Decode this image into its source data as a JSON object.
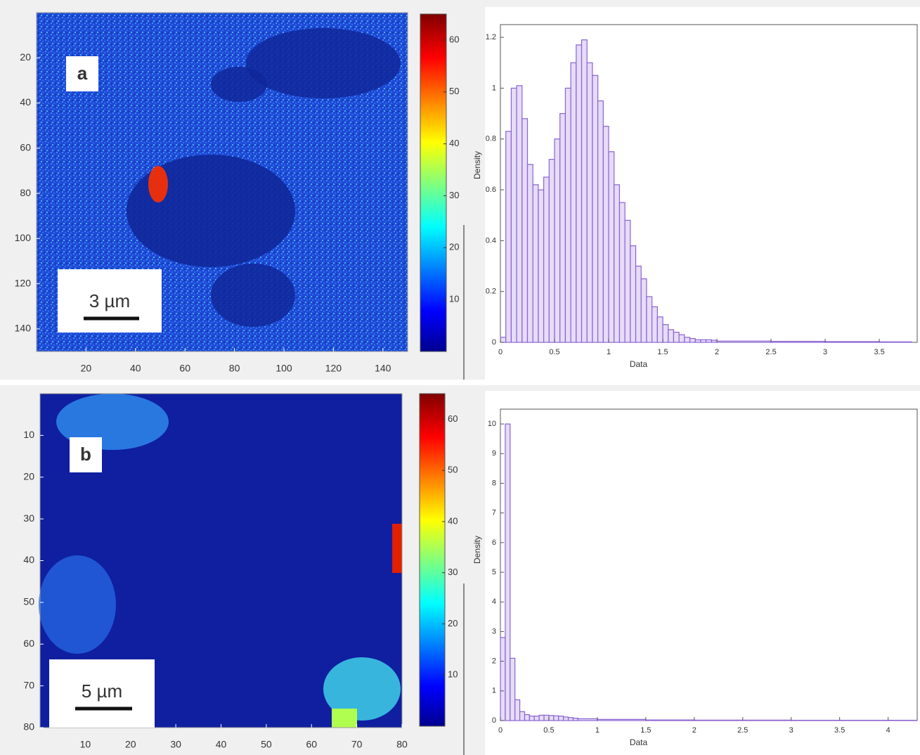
{
  "chart_data": [
    {
      "type": "heatmap",
      "label": "a",
      "scale_bar": "3 µm",
      "colormap": "jet",
      "xlim": [
        0,
        150
      ],
      "ylim": [
        0,
        150
      ],
      "xticks": [
        20,
        40,
        60,
        80,
        100,
        120,
        140
      ],
      "yticks": [
        20,
        40,
        60,
        80,
        100,
        120,
        140
      ],
      "colorbar": {
        "lim": [
          0,
          65
        ],
        "ticks": [
          10,
          20,
          30,
          40,
          50,
          60
        ]
      }
    },
    {
      "type": "histogram",
      "xlabel": "Data",
      "ylabel": "Density",
      "color": "#8a63d2",
      "bins": [
        0,
        0.05,
        0.1,
        0.15,
        0.2,
        0.25,
        0.3,
        0.35,
        0.4,
        0.45,
        0.5,
        0.55,
        0.6,
        0.65,
        0.7,
        0.75,
        0.8,
        0.85,
        0.9,
        0.95,
        1,
        1.05,
        1.1,
        1.15,
        1.2,
        1.25,
        1.3,
        1.35,
        1.4,
        1.45,
        1.5,
        1.55,
        1.6,
        1.65,
        1.7,
        1.75,
        1.8,
        1.85,
        1.9,
        1.95,
        2,
        2.5,
        3,
        3.5,
        3.8
      ],
      "values": [
        0.02,
        0.83,
        1.0,
        1.01,
        0.88,
        0.7,
        0.62,
        0.6,
        0.65,
        0.72,
        0.8,
        0.9,
        1.0,
        1.1,
        1.17,
        1.19,
        1.1,
        1.05,
        0.95,
        0.85,
        0.75,
        0.62,
        0.55,
        0.48,
        0.38,
        0.3,
        0.25,
        0.18,
        0.14,
        0.1,
        0.07,
        0.05,
        0.04,
        0.03,
        0.02,
        0.015,
        0.01,
        0.01,
        0.01,
        0.008,
        0.005,
        0.004,
        0.003,
        0.002
      ],
      "xlim": [
        0,
        3.85
      ],
      "ylim": [
        0,
        1.25
      ],
      "xticks": [
        0,
        0.5,
        1,
        1.5,
        2,
        2.5,
        3,
        3.5
      ],
      "yticks": [
        0,
        0.2,
        0.4,
        0.6,
        0.8,
        1,
        1.2
      ]
    },
    {
      "type": "heatmap",
      "label": "b",
      "scale_bar": "5 µm",
      "colormap": "jet",
      "xlim": [
        0,
        80
      ],
      "ylim": [
        0,
        80
      ],
      "xticks": [
        10,
        20,
        30,
        40,
        50,
        60,
        70,
        80
      ],
      "yticks": [
        10,
        20,
        30,
        40,
        50,
        60,
        70,
        80
      ],
      "colorbar": {
        "lim": [
          0,
          65
        ],
        "ticks": [
          10,
          20,
          30,
          40,
          50,
          60
        ]
      }
    },
    {
      "type": "histogram",
      "xlabel": "Data",
      "ylabel": "Density",
      "color": "#8a63d2",
      "bins": [
        0,
        0.05,
        0.1,
        0.15,
        0.2,
        0.25,
        0.3,
        0.35,
        0.4,
        0.45,
        0.5,
        0.55,
        0.6,
        0.65,
        0.7,
        0.75,
        0.8,
        1,
        1.5,
        2,
        3,
        4,
        4.3
      ],
      "values": [
        2.8,
        10,
        2.1,
        0.7,
        0.3,
        0.2,
        0.15,
        0.15,
        0.18,
        0.18,
        0.17,
        0.16,
        0.15,
        0.12,
        0.1,
        0.08,
        0.06,
        0.04,
        0.02,
        0.015,
        0.01,
        0.01
      ],
      "xlim": [
        0,
        4.3
      ],
      "ylim": [
        0,
        10.5
      ],
      "xticks": [
        0,
        0.5,
        1,
        1.5,
        2,
        2.5,
        3,
        3.5,
        4
      ],
      "yticks": [
        0,
        1,
        2,
        3,
        4,
        5,
        6,
        7,
        8,
        9,
        10
      ]
    }
  ]
}
